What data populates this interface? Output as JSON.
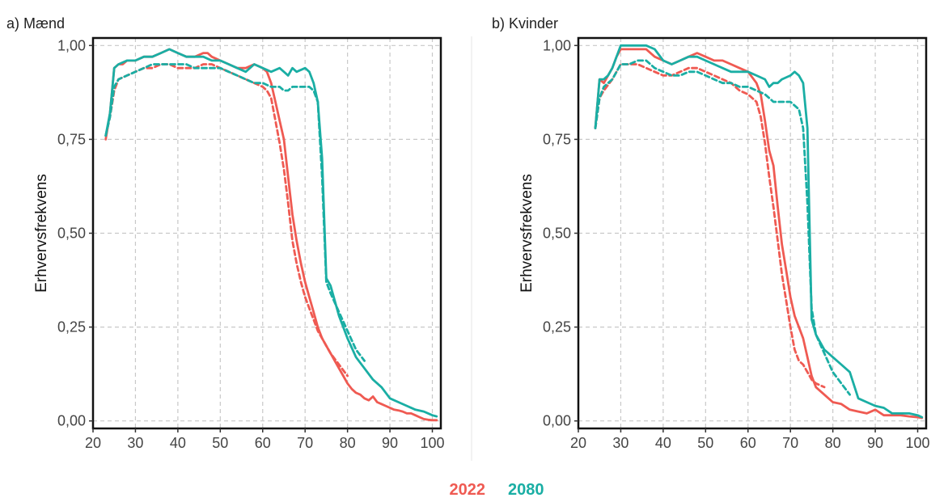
{
  "legend": {
    "y2022": "2022",
    "y2080": "2080"
  },
  "colors": {
    "y2022": "#EF5A52",
    "y2080": "#1AAEA4"
  },
  "chart_data": [
    {
      "type": "line",
      "title": "a) Mænd",
      "ylabel": "Erhvervsfrekvens",
      "xlabel": "",
      "xlim": [
        20,
        102
      ],
      "ylim": [
        -0.02,
        1.02
      ],
      "xticks": [
        20,
        30,
        40,
        50,
        60,
        70,
        80,
        90,
        100
      ],
      "yticks": [
        0,
        0.25,
        0.5,
        0.75,
        1.0
      ],
      "yticklabels": [
        "0,00",
        "0,25",
        "0,50",
        "0,75",
        "1,00"
      ],
      "grid": true,
      "series": [
        {
          "name": "2022",
          "style": "solid",
          "color": "#EF5A52",
          "x": [
            23,
            24,
            25,
            26,
            27,
            28,
            30,
            32,
            34,
            36,
            38,
            40,
            42,
            44,
            46,
            47,
            48,
            50,
            52,
            54,
            56,
            58,
            60,
            61,
            62,
            63,
            64,
            65,
            66,
            67,
            68,
            69,
            70,
            71,
            72,
            73,
            74,
            75,
            76,
            77,
            78,
            79,
            80,
            81,
            82,
            83,
            84,
            85,
            86,
            87,
            88,
            89,
            90,
            91,
            92,
            93,
            94,
            95,
            96,
            97,
            98,
            99,
            100,
            101
          ],
          "y": [
            0.75,
            0.82,
            0.94,
            0.95,
            0.95,
            0.96,
            0.96,
            0.97,
            0.97,
            0.98,
            0.99,
            0.98,
            0.97,
            0.97,
            0.98,
            0.98,
            0.97,
            0.96,
            0.95,
            0.94,
            0.94,
            0.95,
            0.94,
            0.93,
            0.9,
            0.85,
            0.8,
            0.75,
            0.65,
            0.55,
            0.48,
            0.42,
            0.37,
            0.33,
            0.29,
            0.25,
            0.22,
            0.2,
            0.18,
            0.16,
            0.14,
            0.12,
            0.1,
            0.085,
            0.075,
            0.07,
            0.06,
            0.055,
            0.065,
            0.05,
            0.045,
            0.04,
            0.035,
            0.03,
            0.028,
            0.025,
            0.02,
            0.02,
            0.015,
            0.01,
            0.005,
            0.003,
            0.002,
            0.002
          ]
        },
        {
          "name": "2022",
          "style": "dashed",
          "color": "#EF5A52",
          "x": [
            23,
            24,
            25,
            26,
            28,
            30,
            32,
            34,
            36,
            38,
            40,
            42,
            44,
            46,
            48,
            50,
            52,
            54,
            56,
            58,
            60,
            61,
            62,
            63,
            64,
            65,
            66,
            67,
            68,
            69,
            70,
            71,
            72,
            73,
            74,
            75,
            76,
            78,
            80
          ],
          "y": [
            0.76,
            0.81,
            0.88,
            0.91,
            0.92,
            0.93,
            0.94,
            0.94,
            0.95,
            0.95,
            0.94,
            0.94,
            0.94,
            0.95,
            0.95,
            0.94,
            0.93,
            0.92,
            0.91,
            0.9,
            0.89,
            0.88,
            0.86,
            0.8,
            0.74,
            0.67,
            0.58,
            0.48,
            0.42,
            0.37,
            0.33,
            0.3,
            0.27,
            0.24,
            0.22,
            0.2,
            0.18,
            0.15,
            0.12
          ]
        },
        {
          "name": "2080",
          "style": "solid",
          "color": "#1AAEA4",
          "x": [
            23,
            24,
            25,
            26,
            28,
            30,
            32,
            34,
            36,
            38,
            40,
            42,
            44,
            46,
            48,
            50,
            52,
            54,
            56,
            58,
            60,
            62,
            64,
            65,
            66,
            67,
            68,
            70,
            71,
            72,
            73,
            74,
            75,
            76,
            78,
            80,
            82,
            84,
            86,
            88,
            90,
            92,
            94,
            96,
            98,
            100,
            101
          ],
          "y": [
            0.76,
            0.82,
            0.94,
            0.95,
            0.96,
            0.96,
            0.97,
            0.97,
            0.98,
            0.99,
            0.98,
            0.97,
            0.97,
            0.97,
            0.96,
            0.96,
            0.95,
            0.94,
            0.93,
            0.95,
            0.94,
            0.93,
            0.94,
            0.93,
            0.92,
            0.94,
            0.93,
            0.94,
            0.93,
            0.9,
            0.85,
            0.7,
            0.38,
            0.36,
            0.28,
            0.22,
            0.17,
            0.14,
            0.11,
            0.09,
            0.06,
            0.05,
            0.04,
            0.03,
            0.025,
            0.015,
            0.012
          ]
        },
        {
          "name": "2080",
          "style": "dashed",
          "color": "#1AAEA4",
          "x": [
            23,
            24,
            25,
            26,
            28,
            30,
            32,
            34,
            36,
            38,
            40,
            42,
            44,
            46,
            48,
            50,
            52,
            54,
            56,
            58,
            60,
            62,
            64,
            65,
            66,
            67,
            68,
            70,
            71,
            72,
            73,
            74,
            75,
            76,
            78,
            80,
            82,
            84
          ],
          "y": [
            0.76,
            0.81,
            0.89,
            0.91,
            0.92,
            0.93,
            0.94,
            0.95,
            0.95,
            0.95,
            0.95,
            0.95,
            0.94,
            0.94,
            0.94,
            0.94,
            0.93,
            0.92,
            0.91,
            0.9,
            0.9,
            0.89,
            0.89,
            0.88,
            0.88,
            0.89,
            0.89,
            0.89,
            0.89,
            0.88,
            0.85,
            0.65,
            0.37,
            0.34,
            0.29,
            0.24,
            0.19,
            0.16
          ]
        }
      ]
    },
    {
      "type": "line",
      "title": "b) Kvinder",
      "ylabel": "Erhvervsfrekvens",
      "xlabel": "",
      "xlim": [
        20,
        102
      ],
      "ylim": [
        -0.02,
        1.02
      ],
      "xticks": [
        20,
        30,
        40,
        50,
        60,
        70,
        80,
        90,
        100
      ],
      "yticks": [
        0,
        0.25,
        0.5,
        0.75,
        1.0
      ],
      "yticklabels": [
        "0,00",
        "0,25",
        "0,50",
        "0,75",
        "1,00"
      ],
      "grid": true,
      "series": [
        {
          "name": "2022",
          "style": "solid",
          "color": "#EF5A52",
          "x": [
            24,
            25,
            26,
            27,
            28,
            29,
            30,
            32,
            34,
            36,
            38,
            40,
            42,
            44,
            46,
            48,
            50,
            52,
            54,
            56,
            58,
            60,
            62,
            63,
            64,
            65,
            66,
            67,
            68,
            69,
            70,
            71,
            72,
            73,
            74,
            75,
            76,
            78,
            80,
            82,
            84,
            86,
            88,
            90,
            92,
            94,
            96,
            98,
            100,
            101
          ],
          "y": [
            0.78,
            0.91,
            0.9,
            0.92,
            0.94,
            0.97,
            0.99,
            0.99,
            0.99,
            0.99,
            0.97,
            0.96,
            0.95,
            0.96,
            0.97,
            0.98,
            0.97,
            0.96,
            0.96,
            0.95,
            0.94,
            0.93,
            0.9,
            0.87,
            0.8,
            0.72,
            0.68,
            0.57,
            0.47,
            0.4,
            0.33,
            0.28,
            0.25,
            0.22,
            0.17,
            0.12,
            0.09,
            0.07,
            0.05,
            0.045,
            0.03,
            0.025,
            0.02,
            0.03,
            0.015,
            0.015,
            0.015,
            0.012,
            0.01,
            0.008
          ]
        },
        {
          "name": "2022",
          "style": "dashed",
          "color": "#EF5A52",
          "x": [
            24,
            25,
            26,
            28,
            30,
            32,
            34,
            36,
            38,
            40,
            42,
            44,
            46,
            48,
            50,
            52,
            54,
            56,
            58,
            60,
            62,
            63,
            64,
            65,
            66,
            67,
            68,
            69,
            70,
            71,
            72,
            73,
            74,
            75,
            76,
            78
          ],
          "y": [
            0.78,
            0.86,
            0.88,
            0.91,
            0.95,
            0.95,
            0.95,
            0.94,
            0.93,
            0.92,
            0.92,
            0.93,
            0.94,
            0.94,
            0.93,
            0.92,
            0.91,
            0.9,
            0.88,
            0.87,
            0.85,
            0.81,
            0.74,
            0.65,
            0.57,
            0.48,
            0.39,
            0.32,
            0.25,
            0.19,
            0.16,
            0.15,
            0.13,
            0.11,
            0.1,
            0.09
          ]
        },
        {
          "name": "2080",
          "style": "solid",
          "color": "#1AAEA4",
          "x": [
            24,
            25,
            26,
            27,
            28,
            29,
            30,
            32,
            34,
            36,
            38,
            40,
            42,
            44,
            46,
            48,
            50,
            52,
            54,
            56,
            58,
            60,
            62,
            64,
            65,
            66,
            67,
            68,
            70,
            71,
            72,
            73,
            74,
            75,
            76,
            78,
            80,
            82,
            84,
            86,
            88,
            90,
            92,
            94,
            96,
            98,
            100,
            101
          ],
          "y": [
            0.78,
            0.91,
            0.91,
            0.92,
            0.94,
            0.97,
            1.0,
            1.0,
            1.0,
            1.0,
            0.99,
            0.96,
            0.95,
            0.96,
            0.97,
            0.97,
            0.96,
            0.95,
            0.94,
            0.93,
            0.93,
            0.93,
            0.92,
            0.91,
            0.89,
            0.9,
            0.9,
            0.91,
            0.92,
            0.93,
            0.92,
            0.9,
            0.78,
            0.27,
            0.23,
            0.19,
            0.17,
            0.15,
            0.13,
            0.06,
            0.05,
            0.04,
            0.035,
            0.02,
            0.02,
            0.02,
            0.015,
            0.01
          ]
        },
        {
          "name": "2080",
          "style": "dashed",
          "color": "#1AAEA4",
          "x": [
            24,
            25,
            26,
            28,
            30,
            32,
            34,
            36,
            38,
            40,
            42,
            44,
            46,
            48,
            50,
            52,
            54,
            56,
            58,
            60,
            62,
            64,
            65,
            66,
            67,
            68,
            70,
            71,
            72,
            73,
            74,
            75,
            76,
            78,
            80,
            82,
            84
          ],
          "y": [
            0.78,
            0.86,
            0.89,
            0.91,
            0.95,
            0.95,
            0.96,
            0.96,
            0.94,
            0.93,
            0.92,
            0.92,
            0.93,
            0.93,
            0.92,
            0.91,
            0.9,
            0.9,
            0.89,
            0.89,
            0.88,
            0.87,
            0.86,
            0.85,
            0.85,
            0.85,
            0.85,
            0.84,
            0.83,
            0.78,
            0.58,
            0.3,
            0.23,
            0.18,
            0.13,
            0.1,
            0.07
          ]
        }
      ]
    }
  ]
}
